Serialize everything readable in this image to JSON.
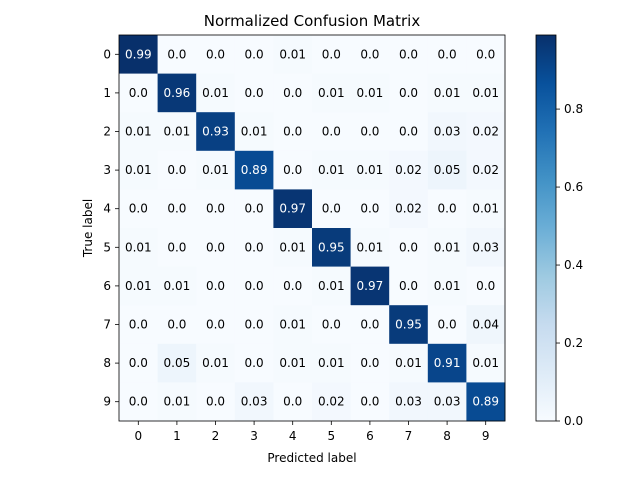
{
  "chart_data": {
    "type": "heatmap",
    "title": "Normalized Confusion Matrix",
    "xlabel": "Predicted label",
    "ylabel": "True label",
    "x_categories": [
      "0",
      "1",
      "2",
      "3",
      "4",
      "5",
      "6",
      "7",
      "8",
      "9"
    ],
    "y_categories": [
      "0",
      "1",
      "2",
      "3",
      "4",
      "5",
      "6",
      "7",
      "8",
      "9"
    ],
    "values": [
      [
        "0.99",
        "0.0",
        "0.0",
        "0.0",
        "0.01",
        "0.0",
        "0.0",
        "0.0",
        "0.0",
        "0.0"
      ],
      [
        "0.0",
        "0.96",
        "0.01",
        "0.0",
        "0.0",
        "0.01",
        "0.01",
        "0.0",
        "0.01",
        "0.01"
      ],
      [
        "0.01",
        "0.01",
        "0.93",
        "0.01",
        "0.0",
        "0.0",
        "0.0",
        "0.0",
        "0.03",
        "0.02"
      ],
      [
        "0.01",
        "0.0",
        "0.01",
        "0.89",
        "0.0",
        "0.01",
        "0.01",
        "0.02",
        "0.05",
        "0.02"
      ],
      [
        "0.0",
        "0.0",
        "0.0",
        "0.0",
        "0.97",
        "0.0",
        "0.0",
        "0.02",
        "0.0",
        "0.01"
      ],
      [
        "0.01",
        "0.0",
        "0.0",
        "0.0",
        "0.01",
        "0.95",
        "0.01",
        "0.0",
        "0.01",
        "0.03"
      ],
      [
        "0.01",
        "0.01",
        "0.0",
        "0.0",
        "0.0",
        "0.01",
        "0.97",
        "0.0",
        "0.01",
        "0.0"
      ],
      [
        "0.0",
        "0.0",
        "0.0",
        "0.0",
        "0.01",
        "0.0",
        "0.0",
        "0.95",
        "0.0",
        "0.04"
      ],
      [
        "0.0",
        "0.05",
        "0.01",
        "0.0",
        "0.01",
        "0.01",
        "0.0",
        "0.01",
        "0.91",
        "0.01"
      ],
      [
        "0.0",
        "0.01",
        "0.0",
        "0.03",
        "0.0",
        "0.02",
        "0.0",
        "0.03",
        "0.03",
        "0.89"
      ]
    ],
    "colormap": "Blues",
    "colorbar": {
      "min": 0.0,
      "max": 0.99,
      "ticks": [
        "0.0",
        "0.2",
        "0.4",
        "0.6",
        "0.8"
      ]
    },
    "grid": false
  }
}
